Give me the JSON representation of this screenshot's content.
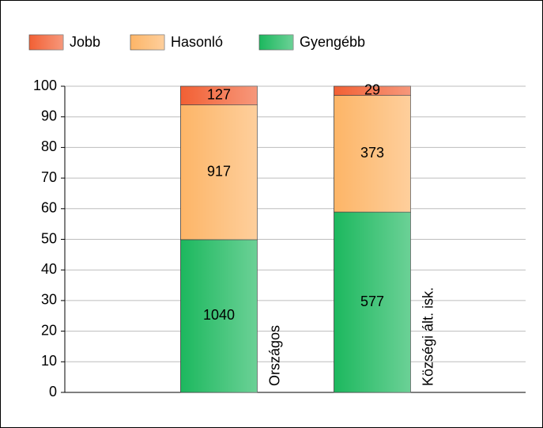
{
  "chart_data": {
    "type": "stacked_bar_percent",
    "categories": [
      "Országos",
      "Községi ált. isk."
    ],
    "series": [
      {
        "name": "Gyengébb",
        "color": "#1cb85e",
        "values": [
          49.9,
          58.9
        ],
        "counts": [
          1040,
          577
        ]
      },
      {
        "name": "Hasonló",
        "color": "#fdb567",
        "values": [
          44.0,
          38.1
        ],
        "counts": [
          917,
          373
        ]
      },
      {
        "name": "Jobb",
        "color": "#f26034",
        "values": [
          6.1,
          3.0
        ],
        "counts": [
          127,
          29
        ]
      }
    ],
    "legend_order": [
      2,
      1,
      0
    ],
    "ylim": [
      0,
      100
    ],
    "yticks": [
      0,
      10,
      20,
      30,
      40,
      50,
      60,
      70,
      80,
      90,
      100
    ],
    "grid": true
  }
}
